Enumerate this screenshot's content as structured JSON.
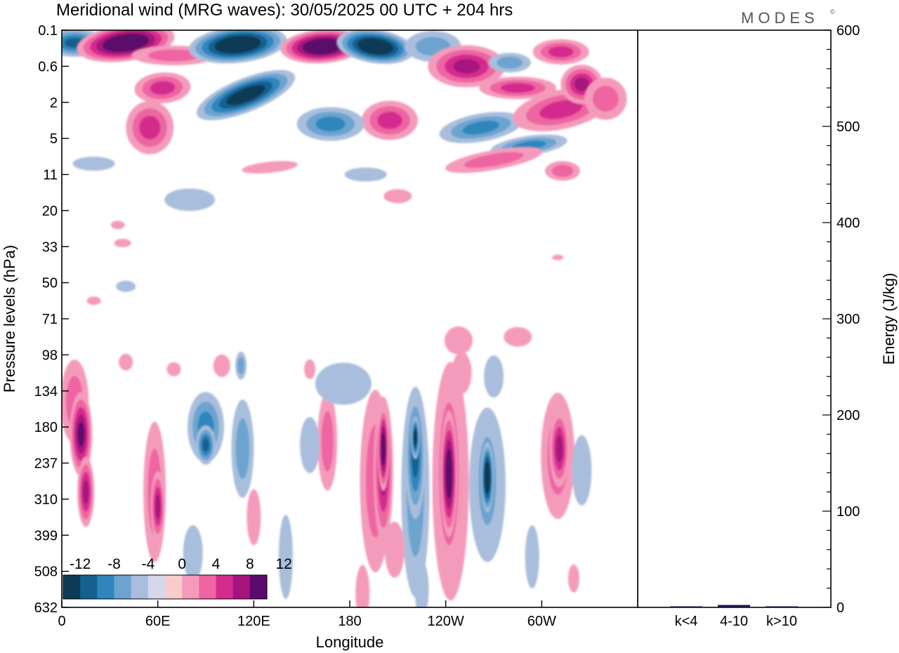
{
  "title": "Meridional wind (MRG waves):  30/05/2025  00 UTC  + 204 hrs",
  "brand": "MODES",
  "brand_mark": "©",
  "colors": {
    "neg": [
      "#0e3a55",
      "#14618f",
      "#2f86bd",
      "#6ca4cf",
      "#a9bedd",
      "#d4d8ea"
    ],
    "zero": "#ffffff",
    "pos": [
      "#f9cccc",
      "#f49bbb",
      "#ee65a2",
      "#d42b8e",
      "#a6137c",
      "#5c0a6b"
    ]
  },
  "chart_data": [
    {
      "type": "heatmap",
      "title": "Meridional wind (MRG waves):  30/05/2025  00 UTC  + 204 hrs",
      "xlabel": "Longitude",
      "ylabel": "Pressure levels (hPa)",
      "x_ticks": [
        "0",
        "60E",
        "120E",
        "180",
        "120W",
        "60W"
      ],
      "y_ticks": [
        "0.1",
        "0.6",
        "2",
        "5",
        "11",
        "20",
        "33",
        "50",
        "71",
        "98",
        "134",
        "180",
        "237",
        "310",
        "399",
        "508",
        "632"
      ],
      "colorbar": {
        "levels": [
          -12,
          -10,
          -8,
          -6,
          -4,
          -2,
          0,
          2,
          4,
          6,
          8,
          10,
          12
        ],
        "labels": [
          "-12",
          "-8",
          "-4",
          "0",
          "4",
          "8",
          "12"
        ]
      },
      "features": [
        {
          "lon": 40,
          "level": "0.3",
          "value": 14
        },
        {
          "lon": 110,
          "level": "0.3",
          "value": -14
        },
        {
          "lon": 165,
          "level": "0.3",
          "value": 14
        },
        {
          "lon": 196,
          "level": "0.3",
          "value": -14
        },
        {
          "lon": 115,
          "level": "2",
          "value": -12
        },
        {
          "lon": 255,
          "level": "0.6",
          "value": 8
        },
        {
          "lon": 305,
          "level": "1",
          "value": 6
        },
        {
          "lon": 215,
          "level": "3",
          "value": 6
        },
        {
          "lon": 265,
          "level": "4",
          "value": -6
        },
        {
          "lon": 12,
          "level": "180",
          "value": 10
        },
        {
          "lon": 72,
          "level": "180",
          "value": -8
        },
        {
          "lon": 200,
          "level": "237",
          "value": 12
        },
        {
          "lon": 221,
          "level": "180",
          "value": -12
        },
        {
          "lon": 242,
          "level": "237",
          "value": 12
        },
        {
          "lon": 266,
          "level": "237",
          "value": -14
        },
        {
          "lon": 310,
          "level": "180",
          "value": 8
        }
      ]
    },
    {
      "type": "bar",
      "categories": [
        "k<4",
        "4-10",
        "k>10"
      ],
      "values": [
        0.5,
        2.5,
        0.5
      ],
      "ylabel": "Energy (J/kg)",
      "ylim": [
        0,
        600
      ],
      "y_ticks": [
        "0",
        "100",
        "200",
        "300",
        "400",
        "500",
        "600"
      ]
    }
  ]
}
